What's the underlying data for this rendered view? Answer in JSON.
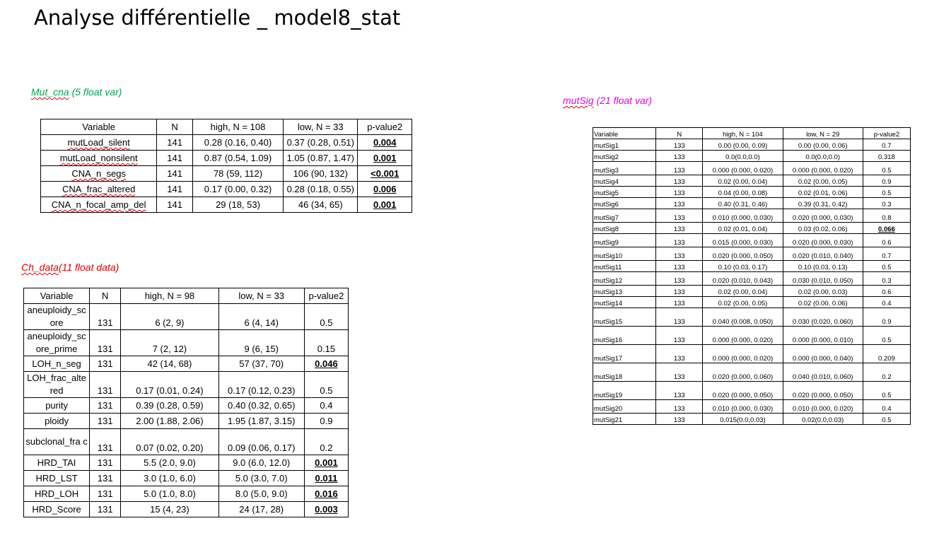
{
  "title": "Analyse différentielle _ model8_stat",
  "sections": {
    "mut": {
      "name": "Mut_cna",
      "suffix": " (5 float var)",
      "color": "#00a651"
    },
    "ch": {
      "name": "Ch_data",
      "suffix": "(11 float data)",
      "color": "#e00000"
    },
    "sig": {
      "name": "mutSig",
      "suffix": " (21 float var)",
      "color": "#e600e6"
    }
  },
  "table_mut": {
    "headers": [
      "Variable",
      "N",
      "high, N = 108",
      "low, N = 33",
      "p-value2"
    ],
    "rows": [
      [
        "mutLoad_silent",
        "141",
        "0.28 (0.16, 0.40)",
        "0.37 (0.28, 0.51)",
        "0.004"
      ],
      [
        "mutLoad_nonsilent",
        "141",
        "0.87 (0.54, 1.09)",
        "1.05 (0.87, 1.47)",
        "0.001"
      ],
      [
        "CNA_n_segs",
        "141",
        "78 (59, 112)",
        "106 (90, 132)",
        "<0.001"
      ],
      [
        "CNA_frac_altered",
        "141",
        "0.17 (0.00, 0.32)",
        "0.28 (0.18, 0.55)",
        "0.006"
      ],
      [
        "CNA_n_focal_amp_del",
        "141",
        "29 (18, 53)",
        "46 (34, 65)",
        "0.001"
      ]
    ]
  },
  "table_ch": {
    "headers": [
      "Variable",
      "N",
      "high, N = 98",
      "low, N = 33",
      "p-value2"
    ],
    "rows": [
      [
        "aneuploidy_sc ore",
        "131",
        "6 (2, 9)",
        "6 (4, 14)",
        "0.5"
      ],
      [
        "aneuploidy_sc ore_prime",
        "131",
        "7 (2, 12)",
        "9 (6, 15)",
        "0.15"
      ],
      [
        "LOH_n_seg",
        "131",
        "42 (14, 68)",
        "57 (37, 70)",
        "0.046"
      ],
      [
        "LOH_frac_alte red",
        "131",
        "0.17 (0.01, 0.24)",
        "0.17 (0.12, 0.23)",
        "0.5"
      ],
      [
        "purity",
        "131",
        "0.39 (0.28, 0.59)",
        "0.40 (0.32, 0.65)",
        "0.4"
      ],
      [
        "ploidy",
        "131",
        "2.00 (1.88, 2.06)",
        "1.95 (1.87, 3.15)",
        "0.9"
      ],
      [
        "subclonal_fra c",
        "131",
        "0.07 (0.02, 0.20)",
        "0.09 (0.06, 0.17)",
        "0.2"
      ],
      [
        "HRD_TAI",
        "131",
        "5.5 (2.0, 9.0)",
        "9.0 (6.0, 12.0)",
        "0.001"
      ],
      [
        "HRD_LST",
        "131",
        "3.0 (1.0, 6.0)",
        "5.0 (3.0, 7.0)",
        "0.011"
      ],
      [
        "HRD_LOH",
        "131",
        "5.0 (1.0, 8.0)",
        "8.0 (5.0, 9.0)",
        "0.016"
      ],
      [
        "HRD_Score",
        "131",
        "15 (4, 23)",
        "24 (17, 28)",
        "0.003"
      ]
    ]
  },
  "table_sig": {
    "headers": [
      "Variable",
      "N",
      "high, N = 104",
      "low, N = 29",
      "p-value2"
    ],
    "rows": [
      [
        "mutSig1",
        "133",
        "0.00 (0.00, 0.09)",
        "0.00 (0.00, 0.06)",
        "0.7"
      ],
      [
        "mutSig2",
        "133",
        "0.0(0.0,0.0)",
        "0.0(0.0,0.0)",
        "0.318"
      ],
      [
        "mutSig3",
        "133",
        "0.000 (0.000, 0.020)",
        "0.000 (0.000, 0.020)",
        "0.5"
      ],
      [
        "mutSig4",
        "133",
        "0.02 (0.00, 0.04)",
        "0.02 (0.00, 0.05)",
        "0.9"
      ],
      [
        "mutSig5",
        "133",
        "0.04 (0.00, 0.08)",
        "0.02 (0.01, 0.06)",
        "0.5"
      ],
      [
        "mutSig6",
        "133",
        "0.40 (0.31, 0.46)",
        "0.39 (0.31, 0.42)",
        "0.3"
      ],
      [
        "mutSig7",
        "133",
        "0.010 (0.000, 0.030)",
        "0.020 (0.000, 0.030)",
        "0.8"
      ],
      [
        "mutSig8",
        "133",
        "0.02 (0.01, 0.04)",
        "0.03 (0.02, 0.06)",
        "0.066"
      ],
      [
        "mutSig9",
        "133",
        "0.015 (0.000, 0.030)",
        "0.020 (0.000, 0.030)",
        "0.6"
      ],
      [
        "mutSig10",
        "133",
        "0.020 (0.000, 0.050)",
        "0.020 (0.010, 0.040)",
        "0.7"
      ],
      [
        "mutSig11",
        "133",
        "0.10 (0.03, 0.17)",
        "0.10 (0.03, 0.13)",
        "0.5"
      ],
      [
        "mutSig12",
        "133",
        "0.020 (0.010, 0.043)",
        "0.030 (0.010, 0.050)",
        "0.3"
      ],
      [
        "mutSig13",
        "133",
        "0.02 (0.00, 0.04)",
        "0.02 (0.00, 0.03)",
        "0.6"
      ],
      [
        "mutSig14",
        "133",
        "0.02 (0.00, 0.05)",
        "0.02 (0.00, 0.06)",
        "0.4"
      ],
      [
        "mutSig15",
        "133",
        "0.040 (0.008, 0.050)",
        "0.030 (0.020, 0.060)",
        "0.9"
      ],
      [
        "mutSig16",
        "133",
        "0.000 (0.000, 0.020)",
        "0.000 (0.000, 0.010)",
        "0.5"
      ],
      [
        "mutSig17",
        "133",
        "0.000 (0.000, 0.020)",
        "0.000 (0.000, 0.040)",
        "0.209"
      ],
      [
        "mutSig18",
        "133",
        "0.020 (0.000, 0.060)",
        "0.040 (0.010, 0.060)",
        "0.2"
      ],
      [
        "mutSig19",
        "133",
        "0.020 (0.000, 0.050)",
        "0.020 (0.000, 0.050)",
        "0.5"
      ],
      [
        "mutSig20",
        "133",
        "0.010 (0.000, 0.030)",
        "0.010 (0.000, 0.020)",
        "0.4"
      ],
      [
        "mutSig21",
        "133",
        "0.015(0.0,0.03)",
        "0.02(0.0,0.03)",
        "0.5"
      ]
    ]
  }
}
